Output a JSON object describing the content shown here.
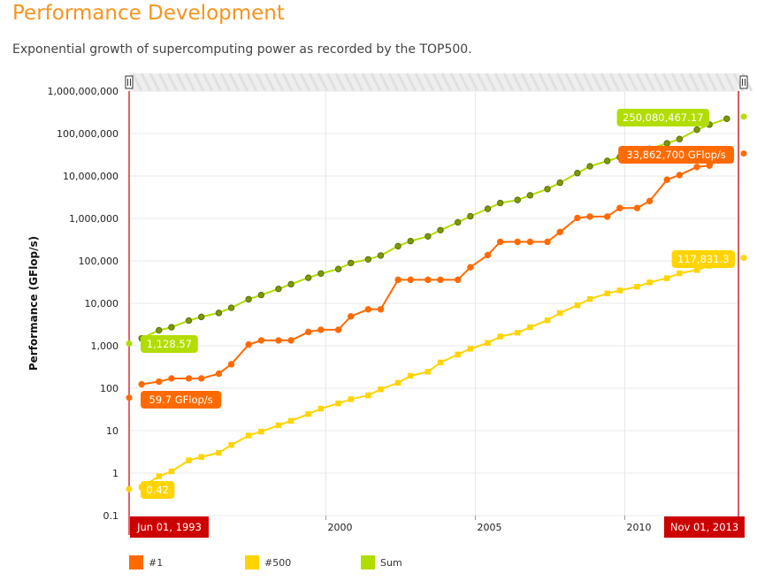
{
  "header": {
    "title": "Performance Development",
    "subtitle": "Exponential growth of supercomputing power as recorded by the TOP500."
  },
  "colors": {
    "n1": "#ff6a00",
    "n500": "#ffd400",
    "sum": "#b2dd00",
    "range_marker": "#cc0000",
    "scroll_handle": "#333333"
  },
  "chart_data": {
    "type": "line",
    "ylabel": "Performance (GFlop/s)",
    "xlabel": "",
    "y_scale": "log",
    "ylim": [
      0.1,
      1000000000
    ],
    "y_ticks": [
      0.1,
      1,
      10,
      100,
      1000,
      10000,
      100000,
      1000000,
      10000000,
      100000000,
      1000000000
    ],
    "y_tick_labels": [
      "0.1",
      "1",
      "10",
      "100",
      "1,000",
      "10,000",
      "100,000",
      "1,000,000",
      "10,000,000",
      "100,000,000",
      "1,000,000,000"
    ],
    "xlim": [
      "1993-06-01",
      "2013-11-01"
    ],
    "x_ticks": [
      "2000-01-01",
      "2005-01-01",
      "2010-01-01"
    ],
    "x_tick_labels": [
      "2000",
      "2005",
      "2010"
    ],
    "range_start_label": "Jun 01, 1993",
    "range_end_label": "Nov 01, 2013",
    "grid": true,
    "legend_position": "bottom-left",
    "x": [
      "1993-06",
      "1993-11",
      "1994-06",
      "1994-11",
      "1995-06",
      "1995-11",
      "1996-06",
      "1996-11",
      "1997-06",
      "1997-11",
      "1998-06",
      "1998-11",
      "1999-06",
      "1999-11",
      "2000-06",
      "2000-11",
      "2001-06",
      "2001-11",
      "2002-06",
      "2002-11",
      "2003-06",
      "2003-11",
      "2004-06",
      "2004-11",
      "2005-06",
      "2005-11",
      "2006-06",
      "2006-11",
      "2007-06",
      "2007-11",
      "2008-06",
      "2008-11",
      "2009-06",
      "2009-11",
      "2010-06",
      "2010-11",
      "2011-06",
      "2011-11",
      "2012-06",
      "2012-11",
      "2013-06",
      "2013-11"
    ],
    "series": [
      {
        "name": "#1",
        "key": "n1",
        "marker": "circle",
        "values": [
          59.7,
          124,
          143,
          170,
          170,
          170,
          220,
          368,
          1068,
          1338,
          1338,
          1338,
          2121,
          2379,
          2379,
          4938,
          7226,
          7226,
          35860,
          35860,
          35860,
          35860,
          35860,
          70720,
          136800,
          280600,
          280600,
          280600,
          280600,
          478200,
          1026000,
          1105000,
          1105000,
          1759000,
          1759000,
          2566000,
          8162000,
          10510000,
          16324750,
          17590000,
          33862700,
          33862700
        ],
        "first_label": "59.7 GFlop/s",
        "last_label": "33,862,700 GFlop/s"
      },
      {
        "name": "#500",
        "key": "n500",
        "marker": "square",
        "values": [
          0.42,
          0.47,
          0.84,
          1.1,
          2.0,
          2.4,
          3.0,
          4.6,
          7.7,
          9.5,
          13.4,
          17.1,
          24.7,
          33.1,
          43.8,
          55.1,
          67.8,
          94.3,
          134,
          196,
          245,
          403,
          624,
          850,
          1166,
          1646,
          2026,
          2737,
          4005,
          5929,
          9000,
          12640,
          17100,
          20050,
          24670,
          31120,
          39130,
          50940,
          60820,
          76500,
          96620,
          117831.3
        ],
        "first_label": "0.42",
        "last_label": "117,831.3"
      },
      {
        "name": "Sum",
        "key": "sum",
        "marker": "circle",
        "values": [
          1128.57,
          1493,
          2317,
          2732,
          3935,
          4783,
          5948,
          7856,
          12480,
          15700,
          21870,
          28260,
          40050,
          50370,
          64250,
          89060,
          108600,
          134000,
          222500,
          292900,
          377700,
          528300,
          810100,
          1127000,
          1685000,
          2311000,
          2722000,
          3508000,
          4921000,
          6953000,
          11700000,
          16900000,
          22600000,
          27900000,
          32400000,
          43600000,
          58900000,
          74200000,
          123000000,
          162000000,
          223000000,
          250080467.17
        ],
        "first_label": "1,128.57",
        "last_label": "250,080,467.17"
      }
    ]
  }
}
